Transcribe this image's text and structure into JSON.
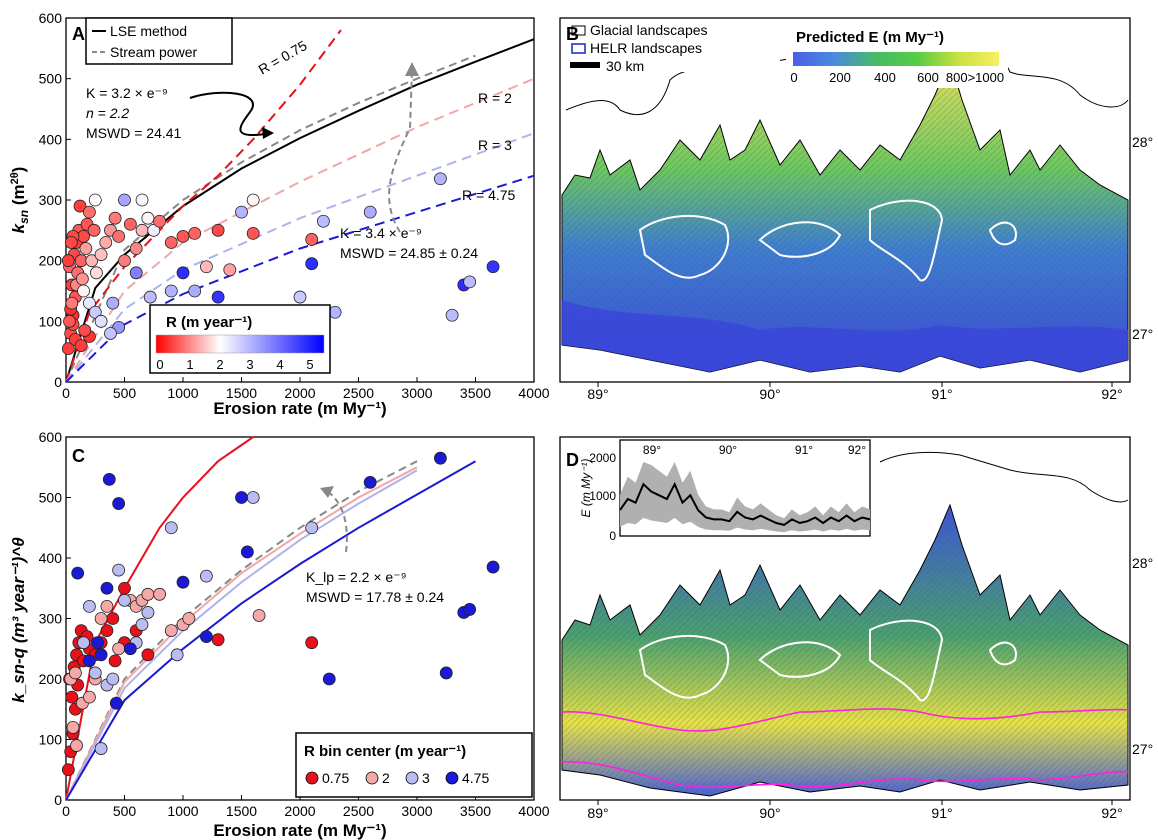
{
  "panelA": {
    "letter": "A",
    "ylabel_main": "k",
    "ylabel_sub": "sn",
    "ylabel_rest": " (m",
    "ylabel_sup": "2θ",
    "ylabel_end": ")",
    "xlabel": "Erosion rate (m My⁻¹)",
    "legend": [
      "LSE method",
      "Stream power"
    ],
    "ann1": [
      "K = 3.2 × e⁻⁹",
      "n = 2.2",
      "MSWD = 24.41"
    ],
    "ann2": [
      "K = 3.4 × e⁻⁹",
      "MSWD = 24.85 ± 0.24"
    ],
    "r_labels": [
      "R = 0.75",
      "R = 2",
      "R = 3",
      "R = 4.75"
    ],
    "colorbar_title": "R (m year⁻¹)",
    "colorbar_ticks": [
      "0",
      "1",
      "2",
      "3",
      "4",
      "5"
    ]
  },
  "panelB": {
    "letter": "B",
    "legend": [
      "Glacial landscapes",
      "HELR landscapes",
      "30 km"
    ],
    "colorbar_title": "Predicted E (m My⁻¹)",
    "colorbar_ticks": [
      "0",
      "200",
      "400",
      "600",
      "800>1000"
    ],
    "lon_ticks": [
      "89°",
      "90°",
      "91°",
      "92°"
    ],
    "lat_ticks": [
      "28°",
      "27°"
    ]
  },
  "panelC": {
    "letter": "C",
    "ylabel": "k_sn-q (m³ year⁻¹)^θ",
    "xlabel": "Erosion rate (m My⁻¹)",
    "ann": [
      "K_lp = 2.2 × e⁻⁹",
      "MSWD = 17.78  ± 0.24"
    ],
    "legend_title": "R bin center (m year⁻¹)",
    "legend_items": [
      "0.75",
      "2",
      "3",
      "4.75"
    ]
  },
  "panelD": {
    "letter": "D",
    "inset_ylabel": "E (m My⁻¹)",
    "inset_yticks": [
      "0",
      "1000",
      "2000"
    ],
    "inset_xticks": [
      "89°",
      "90°",
      "91°",
      "92°"
    ],
    "lon_ticks": [
      "89°",
      "90°",
      "91°",
      "92°"
    ],
    "lat_ticks": [
      "28°",
      "27°"
    ]
  },
  "chart_data": [
    {
      "type": "scatter",
      "panel": "A",
      "xlabel": "Erosion rate (m My-1)",
      "ylabel": "ksn (m2)θ",
      "xlim": [
        0,
        4000
      ],
      "ylim": [
        0,
        600
      ],
      "xticks": [
        0,
        500,
        1000,
        1500,
        2000,
        2500,
        3000,
        3500,
        4000
      ],
      "yticks": [
        0,
        100,
        200,
        300,
        400,
        500,
        600
      ],
      "series": [
        {
          "name": "LSE method",
          "kind": "line",
          "x": [
            0,
            250,
            500,
            1000,
            1500,
            2000,
            2500,
            3000,
            3500,
            4000
          ],
          "y": [
            0,
            155,
            210,
            290,
            352,
            402,
            447,
            490,
            528,
            565
          ]
        },
        {
          "name": "Stream power",
          "kind": "dashed",
          "x": [
            0,
            500,
            1000,
            1500,
            2000,
            2500,
            3000,
            3500
          ],
          "y": [
            0,
            218,
            300,
            362,
            415,
            460,
            500,
            538
          ]
        },
        {
          "name": "R = 0.75",
          "kind": "dashed",
          "x": [
            0,
            200,
            500,
            800,
            1000,
            1300,
            1600,
            2000,
            2350
          ],
          "y": [
            0,
            115,
            190,
            250,
            290,
            340,
            400,
            490,
            580
          ]
        },
        {
          "name": "R = 2",
          "kind": "dashed",
          "x": [
            0,
            500,
            1000,
            2000,
            3000,
            4000
          ],
          "y": [
            0,
            150,
            230,
            330,
            420,
            500
          ]
        },
        {
          "name": "R = 3",
          "kind": "dashed",
          "x": [
            0,
            500,
            1000,
            2000,
            3000,
            4000
          ],
          "y": [
            0,
            120,
            185,
            270,
            340,
            410
          ]
        },
        {
          "name": "R = 4.75",
          "kind": "dashed",
          "x": [
            0,
            500,
            1000,
            2000,
            3000,
            4000
          ],
          "y": [
            0,
            95,
            145,
            220,
            280,
            340
          ]
        }
      ],
      "points": [
        [
          20,
          55,
          0.5
        ],
        [
          40,
          80,
          0.6
        ],
        [
          60,
          110,
          0.4
        ],
        [
          80,
          140,
          0.7
        ],
        [
          50,
          160,
          0.5
        ],
        [
          30,
          190,
          0.8
        ],
        [
          70,
          210,
          0.6
        ],
        [
          90,
          230,
          0.5
        ],
        [
          110,
          250,
          0.7
        ],
        [
          40,
          120,
          0.4
        ],
        [
          60,
          95,
          0.6
        ],
        [
          80,
          70,
          0.5
        ],
        [
          100,
          180,
          0.9
        ],
        [
          130,
          200,
          0.8
        ],
        [
          150,
          240,
          0.6
        ],
        [
          180,
          260,
          0.7
        ],
        [
          120,
          290,
          0.5
        ],
        [
          200,
          280,
          0.9
        ],
        [
          240,
          250,
          0.8
        ],
        [
          60,
          240,
          0.6
        ],
        [
          30,
          100,
          0.7
        ],
        [
          50,
          130,
          1.0
        ],
        [
          90,
          160,
          1.1
        ],
        [
          140,
          170,
          1.2
        ],
        [
          170,
          220,
          1.3
        ],
        [
          220,
          200,
          1.5
        ],
        [
          260,
          180,
          1.8
        ],
        [
          300,
          210,
          1.6
        ],
        [
          340,
          230,
          1.4
        ],
        [
          380,
          250,
          1.2
        ],
        [
          420,
          270,
          1.0
        ],
        [
          450,
          240,
          0.9
        ],
        [
          500,
          200,
          1.0
        ],
        [
          550,
          260,
          0.8
        ],
        [
          600,
          220,
          1.1
        ],
        [
          650,
          250,
          1.5
        ],
        [
          700,
          270,
          2.0
        ],
        [
          750,
          250,
          2.3
        ],
        [
          800,
          265,
          0.9
        ],
        [
          900,
          230,
          0.8
        ],
        [
          1000,
          240,
          0.7
        ],
        [
          1100,
          245,
          0.8
        ],
        [
          1300,
          250,
          0.6
        ],
        [
          1600,
          245,
          0.7
        ],
        [
          2100,
          235,
          0.8
        ],
        [
          1200,
          190,
          1.5
        ],
        [
          1400,
          185,
          1.3
        ],
        [
          650,
          300,
          2.2
        ],
        [
          1600,
          300,
          2.0
        ],
        [
          250,
          300,
          2.1
        ],
        [
          150,
          150,
          2.0
        ],
        [
          200,
          130,
          2.4
        ],
        [
          250,
          115,
          2.8
        ],
        [
          300,
          100,
          2.5
        ],
        [
          400,
          130,
          3.2
        ],
        [
          450,
          90,
          3.5
        ],
        [
          600,
          180,
          3.8
        ],
        [
          500,
          300,
          3.3
        ],
        [
          720,
          140,
          3.0
        ],
        [
          900,
          150,
          3.1
        ],
        [
          1100,
          150,
          3.2
        ],
        [
          1300,
          140,
          4.8
        ],
        [
          1000,
          180,
          4.9
        ],
        [
          1500,
          280,
          3.1
        ],
        [
          2200,
          265,
          3.0
        ],
        [
          2600,
          280,
          3.2
        ],
        [
          3200,
          335,
          3.1
        ],
        [
          3300,
          110,
          3.0
        ],
        [
          2300,
          115,
          3.1
        ],
        [
          2100,
          195,
          4.9
        ],
        [
          2000,
          140,
          2.8
        ],
        [
          3400,
          160,
          4.9
        ],
        [
          3450,
          165,
          3.0
        ],
        [
          3650,
          190,
          4.8
        ],
        [
          380,
          80,
          2.9
        ],
        [
          200,
          75,
          0.4
        ],
        [
          130,
          60,
          0.5
        ],
        [
          160,
          85,
          0.6
        ],
        [
          20,
          200,
          0.5
        ],
        [
          45,
          230,
          0.6
        ]
      ]
    },
    {
      "type": "map",
      "panel": "B",
      "xlabel": "",
      "colorbar_range": [
        0,
        1000
      ],
      "lon_ticks": [
        89,
        90,
        91,
        92
      ],
      "lat_ticks": [
        28,
        27
      ]
    },
    {
      "type": "scatter",
      "panel": "C",
      "xlim": [
        0,
        4000
      ],
      "ylim": [
        0,
        600
      ],
      "xticks": [
        0,
        500,
        1000,
        1500,
        2000,
        2500,
        3000,
        3500,
        4000
      ],
      "yticks": [
        0,
        100,
        200,
        300,
        400,
        500,
        600
      ],
      "series": [
        {
          "name": "0.75",
          "kind": "line",
          "x": [
            0,
            250,
            500,
            800,
            1000,
            1300,
            1600
          ],
          "y": [
            0,
            260,
            350,
            450,
            500,
            560,
            600
          ]
        },
        {
          "name": "stream",
          "kind": "dashed",
          "x": [
            0,
            500,
            1000,
            1500,
            2000,
            2500,
            3000
          ],
          "y": [
            0,
            200,
            300,
            380,
            450,
            510,
            560
          ]
        },
        {
          "name": "2",
          "kind": "line",
          "x": [
            0,
            500,
            1000,
            1500,
            2000,
            2500,
            3000
          ],
          "y": [
            0,
            195,
            292,
            375,
            440,
            500,
            550
          ]
        },
        {
          "name": "3",
          "kind": "line",
          "x": [
            0,
            500,
            1000,
            1500,
            2000,
            2500,
            3000
          ],
          "y": [
            0,
            185,
            280,
            360,
            430,
            490,
            545
          ]
        },
        {
          "name": "4.75",
          "kind": "line",
          "x": [
            0,
            500,
            1000,
            1500,
            2000,
            2500,
            3000,
            3500
          ],
          "y": [
            0,
            165,
            250,
            325,
            390,
            450,
            505,
            560
          ]
        }
      ],
      "points": [
        [
          20,
          50,
          0.75
        ],
        [
          40,
          80,
          0.75
        ],
        [
          60,
          110,
          0.75
        ],
        [
          80,
          150,
          0.75
        ],
        [
          50,
          170,
          0.75
        ],
        [
          30,
          200,
          0.75
        ],
        [
          70,
          220,
          0.75
        ],
        [
          90,
          240,
          0.75
        ],
        [
          110,
          260,
          0.75
        ],
        [
          130,
          280,
          0.75
        ],
        [
          100,
          190,
          0.75
        ],
        [
          150,
          230,
          0.75
        ],
        [
          180,
          270,
          0.75
        ],
        [
          200,
          250,
          0.75
        ],
        [
          250,
          240,
          0.75
        ],
        [
          300,
          260,
          0.75
        ],
        [
          350,
          280,
          0.75
        ],
        [
          400,
          300,
          0.75
        ],
        [
          420,
          230,
          0.75
        ],
        [
          500,
          260,
          0.75
        ],
        [
          600,
          280,
          0.75
        ],
        [
          700,
          240,
          0.75
        ],
        [
          500,
          350,
          0.75
        ],
        [
          1300,
          265,
          0.75
        ],
        [
          2100,
          260,
          0.75
        ],
        [
          60,
          120,
          2
        ],
        [
          90,
          90,
          2
        ],
        [
          140,
          160,
          2
        ],
        [
          200,
          170,
          2
        ],
        [
          250,
          200,
          2
        ],
        [
          300,
          300,
          2
        ],
        [
          350,
          320,
          2
        ],
        [
          450,
          250,
          2
        ],
        [
          550,
          330,
          2
        ],
        [
          600,
          320,
          2
        ],
        [
          650,
          330,
          2
        ],
        [
          700,
          340,
          2
        ],
        [
          800,
          340,
          2
        ],
        [
          900,
          280,
          2
        ],
        [
          1000,
          290,
          2
        ],
        [
          1050,
          300,
          2
        ],
        [
          1650,
          305,
          2
        ],
        [
          40,
          200,
          2
        ],
        [
          80,
          210,
          2
        ],
        [
          150,
          260,
          3
        ],
        [
          200,
          320,
          3
        ],
        [
          250,
          210,
          3
        ],
        [
          300,
          85,
          3
        ],
        [
          350,
          190,
          3
        ],
        [
          400,
          200,
          3
        ],
        [
          450,
          380,
          3
        ],
        [
          500,
          330,
          3
        ],
        [
          600,
          260,
          3
        ],
        [
          650,
          290,
          3
        ],
        [
          700,
          310,
          3
        ],
        [
          900,
          450,
          3
        ],
        [
          950,
          240,
          3
        ],
        [
          1200,
          370,
          3
        ],
        [
          1600,
          500,
          3
        ],
        [
          2100,
          450,
          3
        ],
        [
          300,
          240,
          4.75
        ],
        [
          370,
          530,
          4.75
        ],
        [
          450,
          490,
          4.75
        ],
        [
          350,
          350,
          4.75
        ],
        [
          270,
          260,
          4.75
        ],
        [
          200,
          230,
          4.75
        ],
        [
          550,
          250,
          4.75
        ],
        [
          430,
          160,
          4.75
        ],
        [
          1000,
          360,
          4.75
        ],
        [
          1200,
          270,
          4.75
        ],
        [
          1550,
          410,
          4.75
        ],
        [
          1500,
          500,
          4.75
        ],
        [
          2250,
          200,
          4.75
        ],
        [
          2600,
          525,
          4.75
        ],
        [
          3200,
          565,
          4.75
        ],
        [
          3250,
          210,
          4.75
        ],
        [
          3400,
          310,
          4.75
        ],
        [
          3450,
          315,
          4.75
        ],
        [
          3650,
          385,
          4.75
        ],
        [
          100,
          375,
          4.75
        ]
      ]
    },
    {
      "type": "line",
      "panel": "D-inset",
      "ylabel": "E (m My-1)",
      "xlim": [
        88.8,
        92.0
      ],
      "ylim": [
        0,
        2000
      ],
      "x": [
        88.8,
        88.9,
        89.0,
        89.1,
        89.2,
        89.3,
        89.4,
        89.5,
        89.6,
        89.7,
        89.8,
        89.9,
        90.0,
        90.1,
        90.2,
        90.3,
        90.4,
        90.5,
        90.6,
        90.7,
        90.8,
        90.9,
        91.0,
        91.1,
        91.2,
        91.3,
        91.4,
        91.5,
        91.6,
        91.7,
        91.8,
        91.9,
        92.0
      ],
      "y": [
        700,
        1000,
        900,
        1400,
        1200,
        1100,
        1000,
        1400,
        900,
        1100,
        700,
        500,
        450,
        450,
        400,
        650,
        500,
        450,
        550,
        450,
        350,
        300,
        450,
        350,
        400,
        500,
        350,
        500,
        400,
        550,
        400,
        500,
        450
      ]
    }
  ]
}
